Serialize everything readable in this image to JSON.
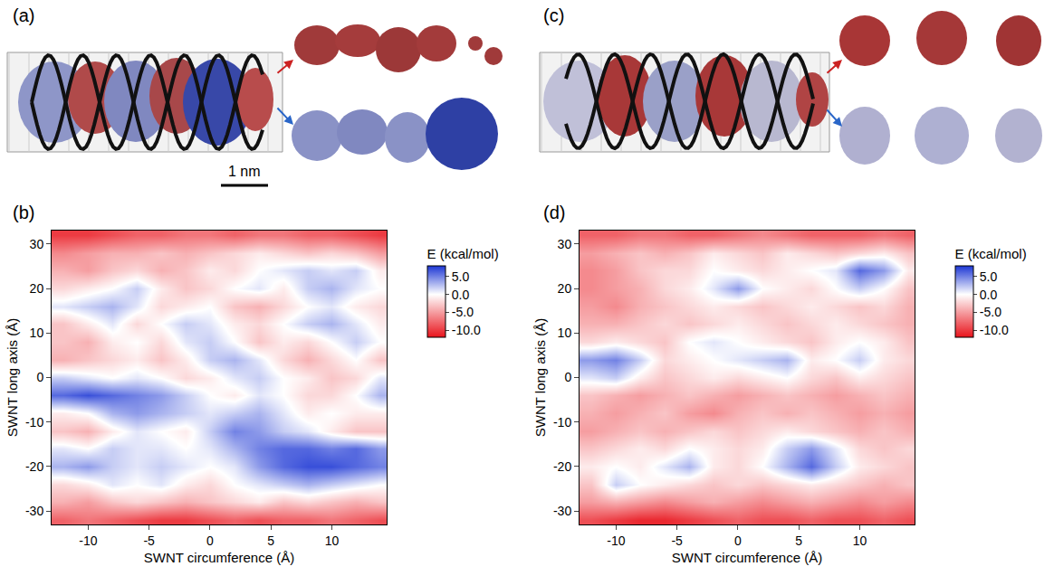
{
  "figure": {
    "panels": [
      {
        "label": "(a)",
        "scale_bar": "1 nm"
      },
      {
        "label": "(c)"
      }
    ]
  },
  "chart_data": [
    {
      "type": "heatmap",
      "panel": "(b)",
      "x_label": "SWNT circumference (Å)",
      "y_label": "SWNT long axis (Å)",
      "x": [
        -12,
        -10,
        -8,
        -6,
        -4,
        -2,
        0,
        2,
        4,
        6,
        8,
        10,
        12,
        14
      ],
      "y": [
        -32,
        -28,
        -24,
        -20,
        -16,
        -12,
        -8,
        -4,
        0,
        4,
        8,
        12,
        16,
        20,
        24,
        28,
        32
      ],
      "z": [
        [
          -8,
          -7,
          -8,
          -9,
          -10,
          -10,
          -9,
          -8,
          -9,
          -8,
          -8,
          -7,
          -8,
          -9
        ],
        [
          -4,
          -5,
          -3,
          -2,
          -3,
          -4,
          -3,
          -2,
          -1,
          -3,
          -2,
          -3,
          -4,
          -3
        ],
        [
          -2,
          -1,
          1,
          0,
          1,
          -1,
          -2,
          0,
          1,
          2,
          3,
          2,
          1,
          0
        ],
        [
          3,
          4,
          2,
          1,
          2,
          1,
          0,
          1,
          4,
          6,
          7,
          7,
          6,
          5
        ],
        [
          1,
          0,
          2,
          1,
          1,
          0,
          1,
          3,
          5,
          6,
          6,
          5,
          6,
          4
        ],
        [
          -3,
          -4,
          -1,
          1,
          0,
          -1,
          2,
          5,
          4,
          2,
          1,
          -1,
          -3,
          -3
        ],
        [
          -1,
          0,
          3,
          4,
          3,
          2,
          1,
          2,
          3,
          1,
          -1,
          0,
          -1,
          -1
        ],
        [
          6,
          7,
          6,
          5,
          4,
          2,
          0,
          -1,
          1,
          0,
          -2,
          -2,
          0,
          3
        ],
        [
          2,
          1,
          0,
          1,
          0,
          -2,
          -1,
          1,
          2,
          0,
          -1,
          -3,
          -2,
          1
        ],
        [
          -4,
          -3,
          -2,
          -1,
          -3,
          -1,
          2,
          3,
          1,
          -2,
          -4,
          -2,
          0,
          -3
        ],
        [
          -3,
          -4,
          -1,
          0,
          -2,
          1,
          2,
          0,
          -3,
          -1,
          -2,
          0,
          2,
          0
        ],
        [
          -3,
          -1,
          1,
          -2,
          0,
          2,
          1,
          -1,
          -2,
          0,
          2,
          3,
          1,
          -1
        ],
        [
          1,
          2,
          3,
          1,
          -2,
          -1,
          0,
          -3,
          -4,
          -2,
          0,
          1,
          -1,
          -2
        ],
        [
          -2,
          -1,
          0,
          2,
          -1,
          -3,
          -2,
          0,
          1,
          -1,
          2,
          3,
          1,
          0
        ],
        [
          -4,
          -5,
          -3,
          -2,
          -4,
          -3,
          -1,
          -2,
          0,
          1,
          2,
          1,
          2,
          -1
        ],
        [
          -6,
          -5,
          -4,
          -4,
          -3,
          -4,
          -3,
          -2,
          -1,
          -2,
          -3,
          -2,
          -3,
          -5
        ],
        [
          -10,
          -10,
          -9,
          -8,
          -8,
          -7,
          -7,
          -8,
          -7,
          -7,
          -8,
          -8,
          -9,
          -10
        ]
      ],
      "xlim": [
        -13,
        14.5
      ],
      "xticks": [
        -10,
        -5,
        0,
        5,
        10
      ],
      "ylim": [
        -33,
        33
      ],
      "yticks": [
        -30,
        -20,
        -10,
        0,
        10,
        20,
        30
      ],
      "colorbar": {
        "title": "E (kcal/mol)",
        "zlim": [
          -12,
          8
        ],
        "zticks": [
          {
            "value": 5,
            "label": "5.0"
          },
          {
            "value": 0,
            "label": "0.0"
          },
          {
            "value": -5,
            "label": "-5.0"
          },
          {
            "value": -10,
            "label": "-10.0"
          }
        ],
        "colors": [
          "#e8141c",
          "#ffffff",
          "#1c36d4"
        ],
        "color_mid": 0
      }
    },
    {
      "type": "heatmap",
      "panel": "(d)",
      "x_label": "SWNT circumference (Å)",
      "y_label": "SWNT long axis (Å)",
      "x": [
        -12,
        -10,
        -8,
        -6,
        -4,
        -2,
        0,
        2,
        4,
        6,
        8,
        10,
        12,
        14
      ],
      "y": [
        -32,
        -28,
        -24,
        -20,
        -16,
        -12,
        -8,
        -4,
        0,
        4,
        8,
        12,
        16,
        20,
        24,
        28,
        32
      ],
      "z": [
        [
          -9,
          -10,
          -11,
          -11,
          -10,
          -9,
          -8,
          -9,
          -9,
          -8,
          -9,
          -9,
          -8,
          -9
        ],
        [
          -5,
          -4,
          -5,
          -6,
          -5,
          -4,
          -5,
          -6,
          -5,
          -4,
          -5,
          -6,
          -5,
          -6
        ],
        [
          -3,
          2,
          0,
          -1,
          -2,
          -3,
          -2,
          -3,
          -2,
          -1,
          -2,
          -3,
          -4,
          -3
        ],
        [
          -1,
          0,
          -1,
          1,
          3,
          -1,
          -2,
          0,
          3,
          6,
          2,
          -1,
          -2,
          -3
        ],
        [
          -3,
          -2,
          -1,
          -2,
          0,
          -1,
          -2,
          -1,
          2,
          4,
          1,
          -2,
          -3,
          -2
        ],
        [
          -5,
          -4,
          -3,
          -4,
          -3,
          -2,
          -3,
          -2,
          -1,
          -2,
          -3,
          -4,
          -3,
          -4
        ],
        [
          -4,
          -5,
          -4,
          -3,
          -5,
          -6,
          -4,
          -3,
          -4,
          -3,
          -4,
          -5,
          -4,
          -5
        ],
        [
          -3,
          -4,
          -5,
          -4,
          -3,
          -4,
          -5,
          -4,
          -3,
          -4,
          -5,
          -4,
          -3,
          -4
        ],
        [
          1,
          2,
          -1,
          -3,
          -2,
          -1,
          -2,
          -1,
          0,
          -2,
          -3,
          -1,
          -2,
          -3
        ],
        [
          4,
          5,
          2,
          -2,
          -1,
          0,
          1,
          2,
          3,
          -1,
          0,
          2,
          -1,
          -2
        ],
        [
          -2,
          -1,
          -2,
          -3,
          0,
          1,
          0,
          -1,
          -2,
          -3,
          -1,
          0,
          -1,
          -3
        ],
        [
          -4,
          -4,
          -3,
          -2,
          -3,
          -2,
          -1,
          -2,
          -3,
          -2,
          -1,
          -2,
          -3,
          -4
        ],
        [
          -5,
          -6,
          -4,
          -3,
          -2,
          -1,
          -2,
          -3,
          -2,
          -1,
          -2,
          -3,
          -2,
          -4
        ],
        [
          -6,
          -5,
          -4,
          -2,
          -1,
          1,
          4,
          0,
          -1,
          -2,
          0,
          2,
          0,
          -3
        ],
        [
          -6,
          -5,
          -3,
          -2,
          -2,
          0,
          -1,
          -2,
          -1,
          0,
          1,
          6,
          4,
          -1
        ],
        [
          -5,
          -4,
          -3,
          -4,
          -3,
          -1,
          -2,
          -3,
          -1,
          -2,
          -3,
          -2,
          -1,
          -3
        ],
        [
          -8,
          -8,
          -7,
          -7,
          -8,
          -8,
          -7,
          -6,
          -7,
          -8,
          -8,
          -8,
          -7,
          -8
        ]
      ],
      "xlim": [
        -13,
        14.5
      ],
      "xticks": [
        -10,
        -5,
        0,
        5,
        10
      ],
      "ylim": [
        -33,
        33
      ],
      "yticks": [
        -30,
        -20,
        -10,
        0,
        10,
        20,
        30
      ],
      "colorbar": {
        "title": "E (kcal/mol)",
        "zlim": [
          -12,
          8
        ],
        "zticks": [
          {
            "value": 5,
            "label": "5.0"
          },
          {
            "value": 0,
            "label": "0.0"
          },
          {
            "value": -5,
            "label": "-5.0"
          },
          {
            "value": -10,
            "label": "-10.0"
          }
        ],
        "colors": [
          "#e8141c",
          "#ffffff",
          "#1c36d4"
        ],
        "color_mid": 0
      }
    }
  ]
}
